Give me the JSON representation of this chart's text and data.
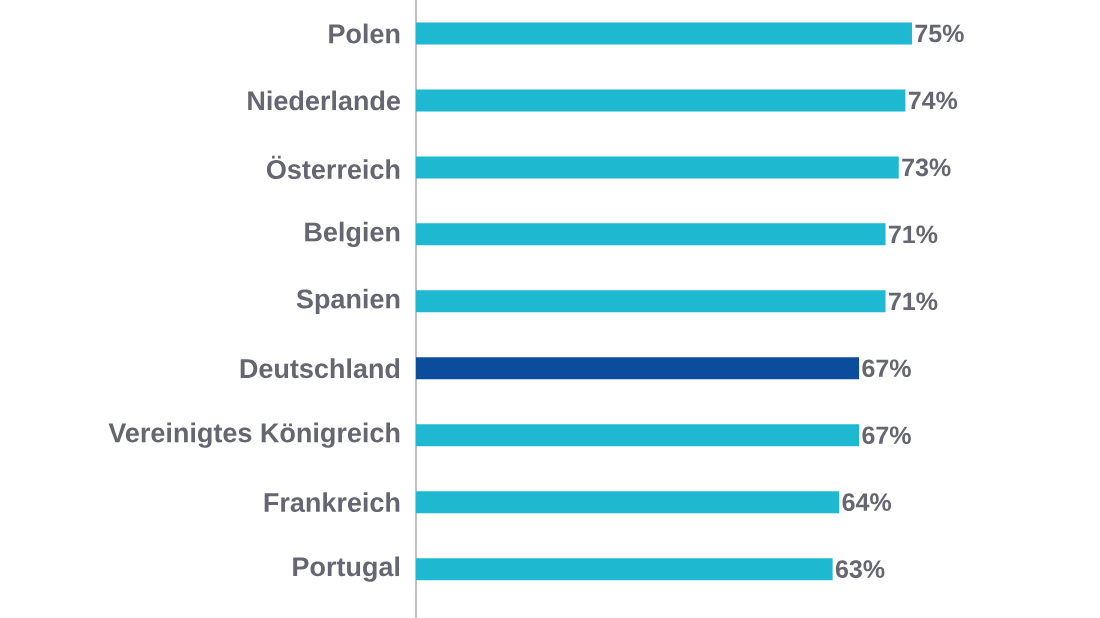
{
  "chart_data": {
    "type": "bar",
    "orientation": "horizontal",
    "categories": [
      "Polen",
      "Niederlande",
      "Österreich",
      "Belgien",
      "Spanien",
      "Deutschland",
      "Vereinigtes Königreich",
      "Frankreich",
      "Portugal"
    ],
    "values": [
      75,
      74,
      73,
      71,
      71,
      67,
      67,
      64,
      63
    ],
    "value_labels": [
      "75%",
      "74%",
      "73%",
      "71%",
      "71%",
      "67%",
      "67%",
      "64%",
      "63%"
    ],
    "colors": [
      "#1eb8d0",
      "#1eb8d0",
      "#1eb8d0",
      "#1eb8d0",
      "#1eb8d0",
      "#0b4c9c",
      "#1eb8d0",
      "#1eb8d0",
      "#1eb8d0"
    ]
  }
}
